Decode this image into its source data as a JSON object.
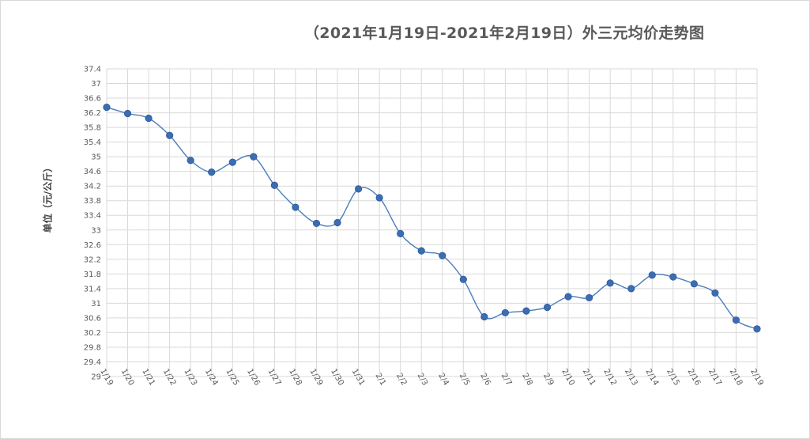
{
  "chart_data": {
    "type": "line",
    "title": "（2021年1月19日-2021年2月19日）外三元均价走势图",
    "xlabel": "",
    "ylabel": "单位（元/公斤）",
    "ylim": [
      29,
      37.4
    ],
    "ytick_step": 0.4,
    "grid": true,
    "categories": [
      "1/19",
      "1/20",
      "1/21",
      "1/22",
      "1/23",
      "1/24",
      "1/25",
      "1/26",
      "1/27",
      "1/28",
      "1/29",
      "1/30",
      "1/31",
      "2/1",
      "2/2",
      "2/3",
      "2/4",
      "2/5",
      "2/6",
      "2/7",
      "2/8",
      "2/9",
      "2/10",
      "2/11",
      "2/12",
      "2/13",
      "2/14",
      "2/15",
      "2/16",
      "2/17",
      "2/18",
      "2/19"
    ],
    "series": [
      {
        "values": [
          36.35,
          36.18,
          36.05,
          35.58,
          34.9,
          34.58,
          34.85,
          35.0,
          34.22,
          33.62,
          33.18,
          33.2,
          34.12,
          33.88,
          32.9,
          32.43,
          32.3,
          31.65,
          30.63,
          30.74,
          30.79,
          30.89,
          31.18,
          31.15,
          31.55,
          31.4,
          31.77,
          31.72,
          31.53,
          31.28,
          30.54,
          30.3
        ]
      }
    ],
    "colors": {
      "line": "#4a7ebb",
      "marker": "#3c6db4",
      "grid": "#d9d9d9"
    }
  }
}
